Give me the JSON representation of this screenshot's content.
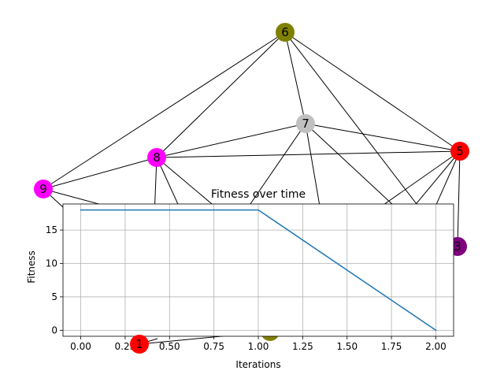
{
  "graph": {
    "nodes": [
      {
        "id": "1",
        "label": "1",
        "color": "#ff0000"
      },
      {
        "id": "2",
        "label": "",
        "color": "#808000"
      },
      {
        "id": "3",
        "label": "3",
        "color": "#800080"
      },
      {
        "id": "5",
        "label": "5",
        "color": "#ff0000"
      },
      {
        "id": "6",
        "label": "6",
        "color": "#808000"
      },
      {
        "id": "7",
        "label": "7",
        "color": "#c0c0c0"
      },
      {
        "id": "8",
        "label": "8",
        "color": "#ff00ff"
      },
      {
        "id": "9",
        "label": "9",
        "color": "#ff00ff"
      }
    ]
  },
  "chart_data": {
    "type": "line",
    "title": "Fitness over time",
    "xlabel": "Iterations",
    "ylabel": "Fitness",
    "x": [
      0,
      1,
      2
    ],
    "series": [
      {
        "values": [
          18,
          18,
          0
        ],
        "color": "#1f77b4"
      }
    ],
    "xlim": [
      -0.1,
      2.1
    ],
    "ylim": [
      -0.9,
      18.9
    ],
    "xticks": [
      0.0,
      0.25,
      0.5,
      0.75,
      1.0,
      1.25,
      1.5,
      1.75,
      2.0
    ],
    "xtick_labels": [
      "0.00",
      "0.25",
      "0.50",
      "0.75",
      "1.00",
      "1.25",
      "1.50",
      "1.75",
      "2.00"
    ],
    "yticks": [
      0,
      5,
      10,
      15
    ],
    "ytick_labels": [
      "0",
      "5",
      "10",
      "15"
    ],
    "grid": true
  }
}
